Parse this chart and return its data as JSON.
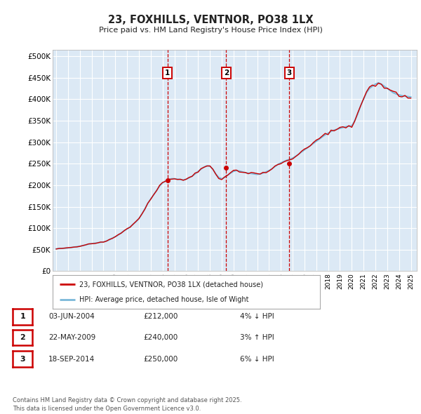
{
  "title": "23, FOXHILLS, VENTNOR, PO38 1LX",
  "subtitle": "Price paid vs. HM Land Registry's House Price Index (HPI)",
  "ylabel_ticks": [
    "£0",
    "£50K",
    "£100K",
    "£150K",
    "£200K",
    "£250K",
    "£300K",
    "£350K",
    "£400K",
    "£450K",
    "£500K"
  ],
  "ytick_values": [
    0,
    50000,
    100000,
    150000,
    200000,
    250000,
    300000,
    350000,
    400000,
    450000,
    500000
  ],
  "ylim": [
    0,
    515000
  ],
  "xlim_start": 1994.7,
  "xlim_end": 2025.5,
  "fig_bg_color": "#ffffff",
  "plot_bg_color": "#dce9f5",
  "grid_color": "#ffffff",
  "hpi_line_color": "#7ab8d9",
  "price_line_color": "#cc0000",
  "marker_color": "#cc0000",
  "dashed_line_color": "#cc0000",
  "transaction_dates": [
    2004.42,
    2009.38,
    2014.71
  ],
  "transaction_labels": [
    "1",
    "2",
    "3"
  ],
  "transaction_prices": [
    212000,
    240000,
    250000
  ],
  "legend_label_price": "23, FOXHILLS, VENTNOR, PO38 1LX (detached house)",
  "legend_label_hpi": "HPI: Average price, detached house, Isle of Wight",
  "table_rows": [
    {
      "num": "1",
      "date": "03-JUN-2004",
      "price": "£212,000",
      "hpi": "4% ↓ HPI"
    },
    {
      "num": "2",
      "date": "22-MAY-2009",
      "price": "£240,000",
      "hpi": "3% ↑ HPI"
    },
    {
      "num": "3",
      "date": "18-SEP-2014",
      "price": "£250,000",
      "hpi": "6% ↓ HPI"
    }
  ],
  "footnote": "Contains HM Land Registry data © Crown copyright and database right 2025.\nThis data is licensed under the Open Government Licence v3.0.",
  "hpi_data_x": [
    1995.0,
    1995.25,
    1995.5,
    1995.75,
    1996.0,
    1996.25,
    1996.5,
    1996.75,
    1997.0,
    1997.25,
    1997.5,
    1997.75,
    1998.0,
    1998.25,
    1998.5,
    1998.75,
    1999.0,
    1999.25,
    1999.5,
    1999.75,
    2000.0,
    2000.25,
    2000.5,
    2000.75,
    2001.0,
    2001.25,
    2001.5,
    2001.75,
    2002.0,
    2002.25,
    2002.5,
    2002.75,
    2003.0,
    2003.25,
    2003.5,
    2003.75,
    2004.0,
    2004.25,
    2004.5,
    2004.75,
    2005.0,
    2005.25,
    2005.5,
    2005.75,
    2006.0,
    2006.25,
    2006.5,
    2006.75,
    2007.0,
    2007.25,
    2007.5,
    2007.75,
    2008.0,
    2008.25,
    2008.5,
    2008.75,
    2009.0,
    2009.25,
    2009.5,
    2009.75,
    2010.0,
    2010.25,
    2010.5,
    2010.75,
    2011.0,
    2011.25,
    2011.5,
    2011.75,
    2012.0,
    2012.25,
    2012.5,
    2012.75,
    2013.0,
    2013.25,
    2013.5,
    2013.75,
    2014.0,
    2014.25,
    2014.5,
    2014.75,
    2015.0,
    2015.25,
    2015.5,
    2015.75,
    2016.0,
    2016.25,
    2016.5,
    2016.75,
    2017.0,
    2017.25,
    2017.5,
    2017.75,
    2018.0,
    2018.25,
    2018.5,
    2018.75,
    2019.0,
    2019.25,
    2019.5,
    2019.75,
    2020.0,
    2020.25,
    2020.5,
    2020.75,
    2021.0,
    2021.25,
    2021.5,
    2021.75,
    2022.0,
    2022.25,
    2022.5,
    2022.75,
    2023.0,
    2023.25,
    2023.5,
    2023.75,
    2024.0,
    2024.25,
    2024.5,
    2024.75,
    2025.0
  ],
  "hpi_data_y": [
    52000,
    52500,
    53000,
    53500,
    54000,
    55000,
    56000,
    57000,
    58000,
    59500,
    61000,
    63000,
    64000,
    65000,
    66000,
    67000,
    68000,
    70000,
    73000,
    77000,
    80000,
    84000,
    89000,
    94000,
    98000,
    103000,
    109000,
    115000,
    122000,
    133000,
    145000,
    158000,
    168000,
    178000,
    188000,
    198000,
    205000,
    210000,
    213000,
    215000,
    215000,
    214000,
    213000,
    212000,
    214000,
    217000,
    221000,
    226000,
    232000,
    237000,
    242000,
    245000,
    244000,
    237000,
    226000,
    218000,
    215000,
    218000,
    223000,
    228000,
    232000,
    234000,
    233000,
    231000,
    229000,
    228000,
    227000,
    226000,
    225000,
    226000,
    228000,
    231000,
    234000,
    238000,
    243000,
    248000,
    252000,
    255000,
    258000,
    260000,
    263000,
    267000,
    272000,
    277000,
    282000,
    287000,
    292000,
    297000,
    302000,
    307000,
    312000,
    317000,
    321000,
    325000,
    328000,
    330000,
    332000,
    334000,
    336000,
    337000,
    338000,
    350000,
    365000,
    385000,
    400000,
    415000,
    425000,
    430000,
    435000,
    438000,
    435000,
    430000,
    425000,
    420000,
    415000,
    412000,
    410000,
    408000,
    407000,
    406000,
    405000
  ]
}
